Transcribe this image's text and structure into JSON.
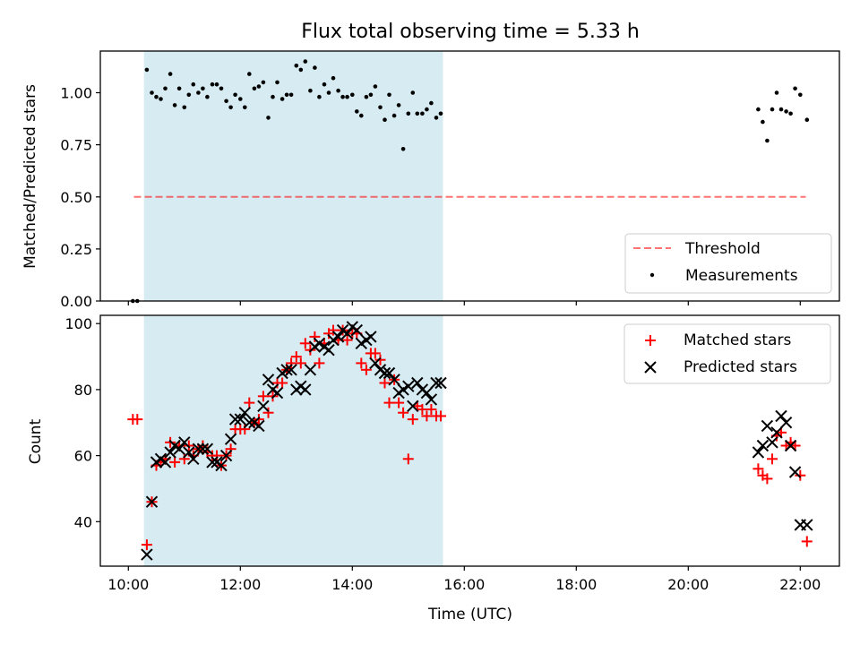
{
  "chart_data": [
    {
      "type": "scatter",
      "title": "Flux total observing time = 5.33 h",
      "xlabel": "",
      "ylabel": "Matched/Predicted stars",
      "ylim": [
        0,
        1.2
      ],
      "yticks": [
        0.0,
        0.25,
        0.5,
        0.75,
        1.0
      ],
      "ytick_labels": [
        "0.00",
        "0.25",
        "0.50",
        "0.75",
        "1.00"
      ],
      "xlim": [
        9.5,
        22.7
      ],
      "shaded_span": [
        10.28,
        15.62
      ],
      "shade_color": "#add8e6",
      "legend_position": "lower right",
      "series": [
        {
          "name": "Threshold",
          "kind": "dashed-line",
          "color": "#ff0000",
          "x": [
            10.1,
            22.1
          ],
          "y": [
            0.5,
            0.5
          ]
        },
        {
          "name": "Measurements",
          "kind": "points",
          "color": "#000000",
          "x": [
            10.08,
            10.16,
            10.33,
            10.42,
            10.5,
            10.58,
            10.66,
            10.75,
            10.83,
            10.91,
            11.0,
            11.08,
            11.16,
            11.25,
            11.33,
            11.41,
            11.5,
            11.58,
            11.66,
            11.75,
            11.83,
            11.91,
            12.0,
            12.08,
            12.16,
            12.25,
            12.33,
            12.41,
            12.5,
            12.58,
            12.66,
            12.75,
            12.83,
            12.91,
            13.0,
            13.08,
            13.16,
            13.25,
            13.33,
            13.41,
            13.5,
            13.58,
            13.66,
            13.75,
            13.83,
            13.91,
            14.0,
            14.08,
            14.16,
            14.25,
            14.33,
            14.41,
            14.5,
            14.58,
            14.66,
            14.75,
            14.83,
            14.91,
            15.0,
            15.08,
            15.16,
            15.25,
            15.33,
            15.41,
            15.5,
            15.58,
            21.25,
            21.33,
            21.41,
            21.5,
            21.58,
            21.66,
            21.75,
            21.83,
            21.91,
            22.0,
            22.12
          ],
          "y": [
            0.0,
            0.0,
            1.11,
            1.0,
            0.98,
            0.97,
            1.02,
            1.09,
            0.94,
            1.02,
            0.93,
            0.99,
            1.04,
            1.0,
            1.02,
            0.98,
            1.04,
            1.04,
            1.02,
            0.96,
            0.93,
            0.99,
            0.97,
            0.93,
            1.09,
            1.02,
            1.03,
            1.05,
            0.88,
            0.98,
            1.05,
            0.97,
            0.99,
            0.99,
            1.13,
            1.11,
            1.15,
            1.01,
            1.12,
            0.98,
            1.04,
            1.0,
            1.07,
            1.01,
            0.98,
            0.98,
            0.99,
            0.91,
            0.89,
            0.98,
            0.99,
            1.03,
            0.93,
            0.87,
            0.99,
            0.89,
            0.94,
            0.73,
            0.9,
            1.0,
            0.9,
            0.9,
            0.92,
            0.95,
            0.88,
            0.9,
            0.92,
            0.86,
            0.77,
            0.92,
            1.0,
            0.92,
            0.91,
            0.9,
            1.02,
            0.99,
            0.87
          ]
        }
      ]
    },
    {
      "type": "scatter",
      "title": "",
      "xlabel": "Time (UTC)",
      "ylabel": "Count",
      "ylim": [
        26.5,
        102.5
      ],
      "yticks": [
        40,
        60,
        80,
        100
      ],
      "ytick_labels": [
        "40",
        "60",
        "80",
        "100"
      ],
      "xlim": [
        9.5,
        22.7
      ],
      "xticks": [
        10,
        12,
        14,
        16,
        18,
        20,
        22
      ],
      "xtick_labels": [
        "10:00",
        "12:00",
        "14:00",
        "16:00",
        "18:00",
        "20:00",
        "22:00"
      ],
      "shaded_span": [
        10.28,
        15.62
      ],
      "shade_color": "#add8e6",
      "legend_position": "upper right",
      "series": [
        {
          "name": "Matched stars",
          "marker": "plus",
          "color": "#ff0000",
          "x": [
            10.08,
            10.16,
            10.33,
            10.42,
            10.5,
            10.58,
            10.66,
            10.75,
            10.83,
            10.91,
            11.0,
            11.08,
            11.16,
            11.25,
            11.33,
            11.41,
            11.5,
            11.58,
            11.66,
            11.75,
            11.83,
            11.91,
            12.0,
            12.08,
            12.16,
            12.25,
            12.33,
            12.41,
            12.5,
            12.58,
            12.66,
            12.75,
            12.83,
            12.91,
            13.0,
            13.08,
            13.16,
            13.25,
            13.33,
            13.41,
            13.5,
            13.58,
            13.66,
            13.75,
            13.83,
            13.91,
            14.0,
            14.08,
            14.16,
            14.25,
            14.33,
            14.41,
            14.5,
            14.58,
            14.66,
            14.75,
            14.83,
            14.91,
            15.0,
            15.08,
            15.16,
            15.25,
            15.33,
            15.41,
            15.5,
            15.58,
            21.25,
            21.33,
            21.41,
            21.5,
            21.58,
            21.66,
            21.75,
            21.83,
            21.91,
            22.0,
            22.12
          ],
          "y": [
            71,
            71,
            33,
            46,
            57,
            58,
            59,
            64,
            58,
            63,
            59,
            63,
            60,
            62,
            63,
            61,
            60,
            60,
            57,
            60,
            62,
            68,
            68,
            68,
            76,
            70,
            71,
            78,
            73,
            78,
            82,
            82,
            86,
            88,
            90,
            88,
            94,
            92,
            96,
            88,
            94,
            97,
            98,
            95,
            98,
            95,
            97,
            97,
            88,
            86,
            91,
            91,
            89,
            82,
            76,
            83,
            76,
            73,
            59,
            71,
            75,
            74,
            72,
            74,
            72,
            72,
            56,
            54,
            53,
            59,
            66,
            67,
            63,
            64,
            63,
            54,
            34
          ]
        },
        {
          "name": "Predicted stars",
          "marker": "x",
          "color": "#000000",
          "x": [
            10.33,
            10.42,
            10.5,
            10.58,
            10.66,
            10.75,
            10.83,
            10.91,
            11.0,
            11.08,
            11.16,
            11.25,
            11.33,
            11.41,
            11.5,
            11.58,
            11.66,
            11.75,
            11.83,
            11.91,
            12.0,
            12.08,
            12.16,
            12.25,
            12.33,
            12.41,
            12.5,
            12.58,
            12.66,
            12.75,
            12.83,
            12.91,
            13.0,
            13.08,
            13.16,
            13.25,
            13.33,
            13.41,
            13.5,
            13.58,
            13.66,
            13.75,
            13.83,
            13.91,
            14.0,
            14.08,
            14.16,
            14.25,
            14.33,
            14.41,
            14.5,
            14.58,
            14.66,
            14.75,
            14.83,
            14.91,
            15.0,
            15.08,
            15.16,
            15.25,
            15.33,
            15.41,
            15.5,
            15.58,
            21.25,
            21.33,
            21.41,
            21.5,
            21.58,
            21.66,
            21.75,
            21.83,
            21.91,
            22.0,
            22.12
          ],
          "y": [
            30,
            46,
            58,
            59,
            58,
            61,
            63,
            62,
            64,
            61,
            59,
            62,
            62,
            62,
            58,
            58,
            57,
            60,
            65,
            71,
            71,
            73,
            70,
            70,
            69,
            75,
            83,
            80,
            79,
            85,
            86,
            86,
            80,
            81,
            80,
            86,
            93,
            94,
            93,
            92,
            95,
            96,
            98,
            97,
            99,
            98,
            94,
            95,
            96,
            88,
            86,
            85,
            85,
            83,
            79,
            80,
            81,
            75,
            82,
            80,
            79,
            77,
            82,
            82,
            61,
            63,
            69,
            64,
            67,
            72,
            70,
            63,
            55,
            39,
            39
          ]
        }
      ]
    }
  ]
}
